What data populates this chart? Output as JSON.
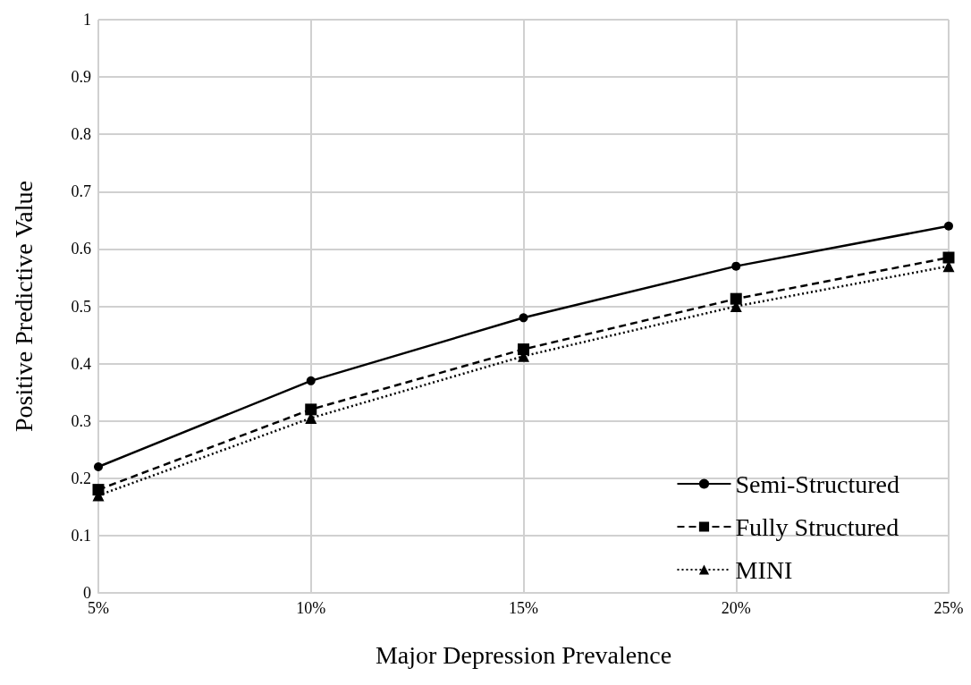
{
  "chart_data": {
    "type": "line",
    "xlabel": "Major Depression Prevalence",
    "ylabel": "Positive Predictive Value",
    "categories": [
      "5%",
      "10%",
      "15%",
      "20%",
      "25%"
    ],
    "series": [
      {
        "name": "Semi-Structured",
        "color": "#000000",
        "marker": "circle",
        "line_style": "solid",
        "values": [
          0.22,
          0.37,
          0.48,
          0.57,
          0.64
        ]
      },
      {
        "name": "Fully Structured",
        "color": "#000000",
        "marker": "square",
        "line_style": "dashed",
        "values": [
          0.18,
          0.32,
          0.425,
          0.513,
          0.585
        ]
      },
      {
        "name": "MINI",
        "color": "#000000",
        "marker": "triangle",
        "line_style": "dotted",
        "values": [
          0.17,
          0.305,
          0.413,
          0.5,
          0.57
        ]
      }
    ],
    "ylim": [
      0,
      1
    ],
    "yticks": [
      0,
      0.1,
      0.2,
      0.3,
      0.4,
      0.5,
      0.6,
      0.7,
      0.8,
      0.9,
      1
    ],
    "grid": true,
    "legend": "bottom right"
  }
}
